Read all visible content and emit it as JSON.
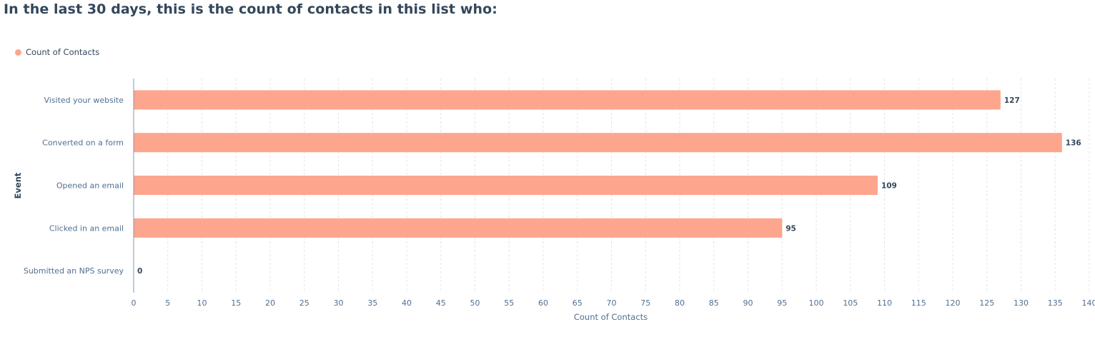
{
  "title": "In the last 30 days, this is the count of contacts in this list who:",
  "legend": {
    "label": "Count of Contacts",
    "color": "#fea58e"
  },
  "chart_data": {
    "type": "bar",
    "orientation": "horizontal",
    "categories": [
      "Visited your website",
      "Converted on a form",
      "Opened an email",
      "Clicked in an email",
      "Submitted an NPS survey"
    ],
    "series": [
      {
        "name": "Count of Contacts",
        "values": [
          127,
          136,
          109,
          95,
          0
        ],
        "color": "#fea58e"
      }
    ],
    "data_labels": [
      "127",
      "136",
      "109",
      "95",
      "0"
    ],
    "xlabel": "Count of Contacts",
    "ylabel": "Event",
    "xlim": [
      0,
      140
    ],
    "xticks": [
      "0",
      "5",
      "10",
      "15",
      "20",
      "25",
      "30",
      "35",
      "40",
      "45",
      "50",
      "55",
      "60",
      "65",
      "70",
      "75",
      "80",
      "85",
      "90",
      "95",
      "100",
      "105",
      "110",
      "115",
      "120",
      "125",
      "130",
      "135",
      "140"
    ],
    "grid": "vertical dashed",
    "legend_position": "top-left"
  }
}
